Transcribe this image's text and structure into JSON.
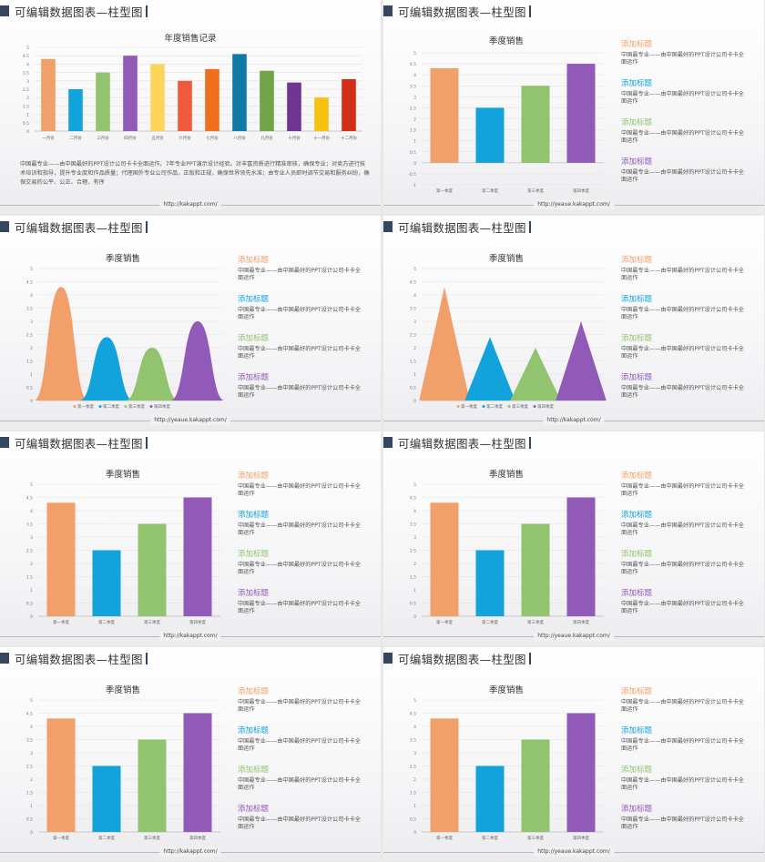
{
  "slide_title": "可编辑数据图表—柱型图",
  "colors": {
    "c1": "#f0a068",
    "c2": "#12a3dc",
    "c3": "#92c46f",
    "c4": "#9159b8",
    "header": "#36465f"
  },
  "legend_items": [
    {
      "title": "添加标题",
      "body": "中国最专业——由中国最好的PPT设计公司卡卡全面运作"
    },
    {
      "title": "添加标题",
      "body": "中国最专业——由中国最好的PPT设计公司卡卡全面运作"
    },
    {
      "title": "添加标题",
      "body": "中国最专业——由中国最好的PPT设计公司卡卡全面运作"
    },
    {
      "title": "添加标题",
      "body": "中国最专业——由中国最好的PPT设计公司卡卡全面运作"
    }
  ],
  "description": "中国最专业——由中国最好的PPT设计公司卡卡全面运作。7年专业PPT演示设计经验。对丰富资质进行精准审核，确保专业；对卖方进行技术培训和指导，提升专业度和作品质量；代理国外专业公司作品，正版和正规，确保世界领先水准；由专业人员即时调节交易和服务纠纷，确保交易的公平、公正、合理、有序",
  "slides": [
    {
      "url": "http://kakappt.com/"
    },
    {
      "url": "http://yeaue.kakappt.com/"
    },
    {
      "url": "http://yeaue.kakappt.com/"
    },
    {
      "url": "http://kakappt.com/"
    },
    {
      "url": "http://kakappt.com/"
    },
    {
      "url": "http://yeaue.kakappt.com/"
    },
    {
      "url": "http://kakappt.com/"
    },
    {
      "url": "http://yeaue.kakappt.com/"
    }
  ],
  "chart_data": [
    {
      "type": "bar",
      "title": "年度销售记录",
      "categories": [
        "一月份",
        "二月份",
        "三月份",
        "四月份",
        "五月份",
        "六月份",
        "七月份",
        "八月份",
        "九月份",
        "十月份",
        "十一月份",
        "十二月份"
      ],
      "values": [
        4.3,
        2.5,
        3.5,
        4.5,
        4.0,
        3.0,
        3.7,
        4.6,
        3.6,
        2.9,
        2.0,
        3.1
      ],
      "bar_colors": [
        "#f0a068",
        "#12a3dc",
        "#92c46f",
        "#9159b8",
        "#fdd55a",
        "#ef5a3c",
        "#ee6f1c",
        "#0f79a8",
        "#6fa548",
        "#6f3592",
        "#f6c10f",
        "#d32f18"
      ],
      "ylim": [
        0,
        5
      ],
      "yticks": [
        "0",
        "0.5",
        "1",
        "1.5",
        "2",
        "2.5",
        "3",
        "3.5",
        "4",
        "4.5",
        "5"
      ]
    },
    {
      "type": "bar",
      "title": "季度销售",
      "categories": [
        "第一季度",
        "第二季度",
        "第三季度",
        "第四季度"
      ],
      "values": [
        4.3,
        2.5,
        3.5,
        4.5
      ],
      "ylim": [
        -1,
        5
      ],
      "yticks": [
        "-1",
        "-0.5",
        "0",
        "0.5",
        "1",
        "1.5",
        "2",
        "2.5",
        "3",
        "3.5",
        "4",
        "4.5",
        "5"
      ]
    },
    {
      "type": "area",
      "title": "季度销售",
      "categories": [
        "第一季度",
        "第二季度",
        "第三季度",
        "第四季度"
      ],
      "values": [
        4.3,
        2.4,
        2.0,
        3.0
      ],
      "ylim": [
        0,
        5
      ],
      "yticks": [
        "0",
        "0.5",
        "1",
        "1.5",
        "2",
        "2.5",
        "3",
        "3.5",
        "4",
        "4.5",
        "5"
      ],
      "legend": [
        "第一季度",
        "第二季度",
        "第三季度",
        "第四季度"
      ]
    },
    {
      "type": "area",
      "title": "季度销售",
      "categories": [
        "第一季度",
        "第二季度",
        "第三季度",
        "第四季度"
      ],
      "values": [
        4.3,
        2.4,
        2.0,
        3.0
      ],
      "ylim": [
        0,
        5
      ],
      "yticks": [
        "0",
        "0.5",
        "1",
        "1.5",
        "2",
        "2.5",
        "3",
        "3.5",
        "4",
        "4.5",
        "5"
      ],
      "legend": [
        "第一季度",
        "第二季度",
        "第三季度",
        "第四季度"
      ]
    },
    {
      "type": "bar",
      "title": "季度销售",
      "categories": [
        "第一季度",
        "第二季度",
        "第三季度",
        "第四季度"
      ],
      "values": [
        4.3,
        2.5,
        3.5,
        4.5
      ],
      "ylim": [
        0,
        5
      ],
      "yticks": [
        "0",
        "0.5",
        "1",
        "1.5",
        "2",
        "2.5",
        "3",
        "3.5",
        "4",
        "4.5",
        "5"
      ]
    },
    {
      "type": "bar",
      "title": "季度销售",
      "categories": [
        "第一季度",
        "第二季度",
        "第三季度",
        "第四季度"
      ],
      "values": [
        4.3,
        2.5,
        3.5,
        4.5
      ],
      "ylim": [
        0,
        5
      ],
      "yticks": [
        "0",
        "0.5",
        "1",
        "1.5",
        "2",
        "2.5",
        "3",
        "3.5",
        "4",
        "4.5",
        "5"
      ]
    },
    {
      "type": "bar",
      "title": "季度销售",
      "categories": [
        "第一季度",
        "第二季度",
        "第三季度",
        "第四季度"
      ],
      "values": [
        4.3,
        2.5,
        3.5,
        4.5
      ],
      "ylim": [
        0,
        5
      ],
      "yticks": [
        "0",
        "0.5",
        "1",
        "1.5",
        "2",
        "2.5",
        "3",
        "3.5",
        "4",
        "4.5",
        "5"
      ]
    },
    {
      "type": "bar",
      "title": "季度销售",
      "categories": [
        "第一季度",
        "第二季度",
        "第三季度",
        "第四季度"
      ],
      "values": [
        4.3,
        2.5,
        3.5,
        4.5
      ],
      "ylim": [
        0,
        5
      ],
      "yticks": [
        "0",
        "0.5",
        "1",
        "1.5",
        "2",
        "2.5",
        "3",
        "3.5",
        "4",
        "4.5",
        "5"
      ]
    }
  ]
}
